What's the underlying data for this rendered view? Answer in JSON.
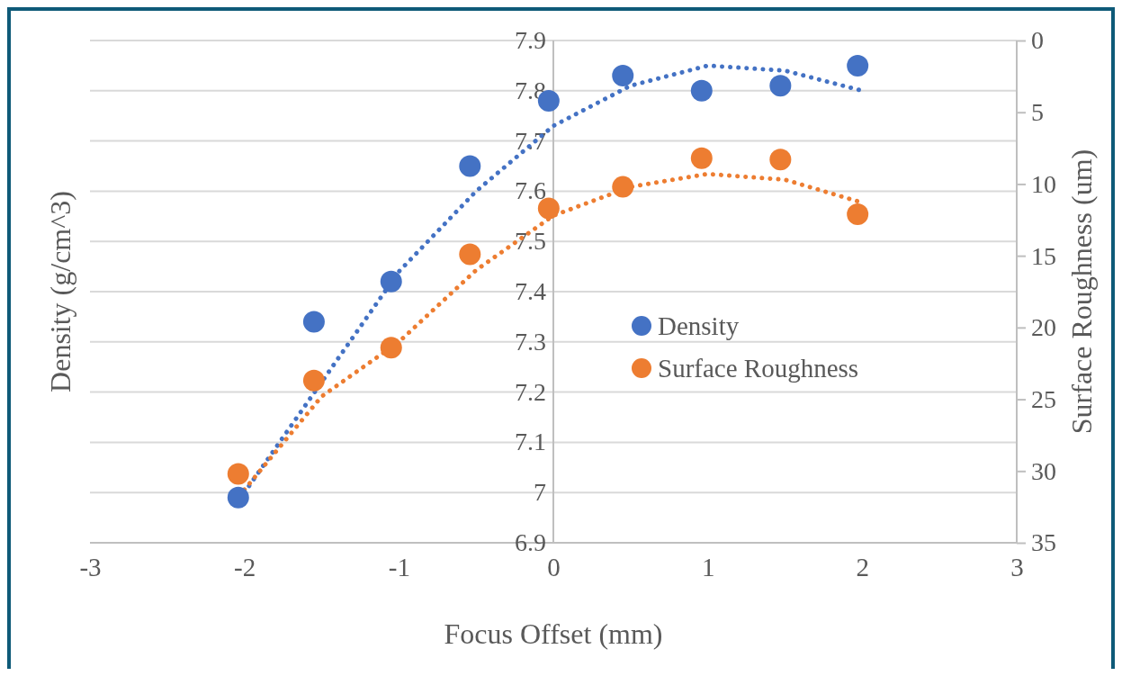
{
  "chart_data": {
    "type": "scatter",
    "xlabel": "Focus Offset (mm)",
    "ylabel": "Density (g/cm^3)",
    "y2label": "Surface Roughness (um)",
    "xlim": [
      -3,
      3
    ],
    "xticks": [
      -3,
      -2,
      -1,
      0,
      1,
      2,
      3
    ],
    "ylim": [
      6.9,
      7.9
    ],
    "yticks": [
      6.9,
      7,
      7.1,
      7.2,
      7.3,
      7.4,
      7.5,
      7.6,
      7.7,
      7.8,
      7.9
    ],
    "y2lim": [
      35,
      0
    ],
    "y2ticks": [
      0,
      5,
      10,
      15,
      20,
      25,
      30,
      35
    ],
    "grid": "y",
    "legend": "right",
    "marker": "circle",
    "series": [
      {
        "name": "Density",
        "color": "#4472c4",
        "x": [
          -2.04,
          -1.55,
          -1.05,
          -0.54,
          -0.03,
          0.45,
          0.96,
          1.47,
          1.97
        ],
        "values": [
          6.99,
          7.34,
          7.42,
          7.65,
          7.78,
          7.83,
          7.8,
          7.81,
          7.85
        ]
      },
      {
        "name": "Surface Roughness",
        "color": "#ed7d31",
        "axis": "y2",
        "x": [
          -2.04,
          -1.55,
          -1.05,
          -0.54,
          -0.03,
          0.45,
          0.96,
          1.47,
          1.97
        ],
        "values": [
          30.2,
          23.7,
          21.4,
          14.9,
          11.7,
          10.2,
          8.2,
          8.3,
          12.1
        ]
      },
      {
        "type": "line",
        "color": "#4472c4",
        "line_style": "dotted",
        "marker": "none",
        "x": [
          -2,
          -1.5,
          -1,
          -0.5,
          0,
          0.5,
          1,
          1.5,
          2
        ],
        "values": [
          7.0,
          7.22,
          7.44,
          7.6,
          7.73,
          7.81,
          7.85,
          7.84,
          7.8
        ]
      },
      {
        "type": "line",
        "color": "#ed7d31",
        "line_style": "dotted",
        "marker": "none",
        "axis": "y2",
        "x": [
          -2,
          -1.5,
          -1,
          -0.5,
          0,
          0.5,
          1,
          1.5,
          2
        ],
        "values": [
          31.3,
          24.8,
          21.0,
          16.0,
          12.2,
          10.2,
          9.3,
          9.7,
          11.3
        ]
      }
    ]
  }
}
